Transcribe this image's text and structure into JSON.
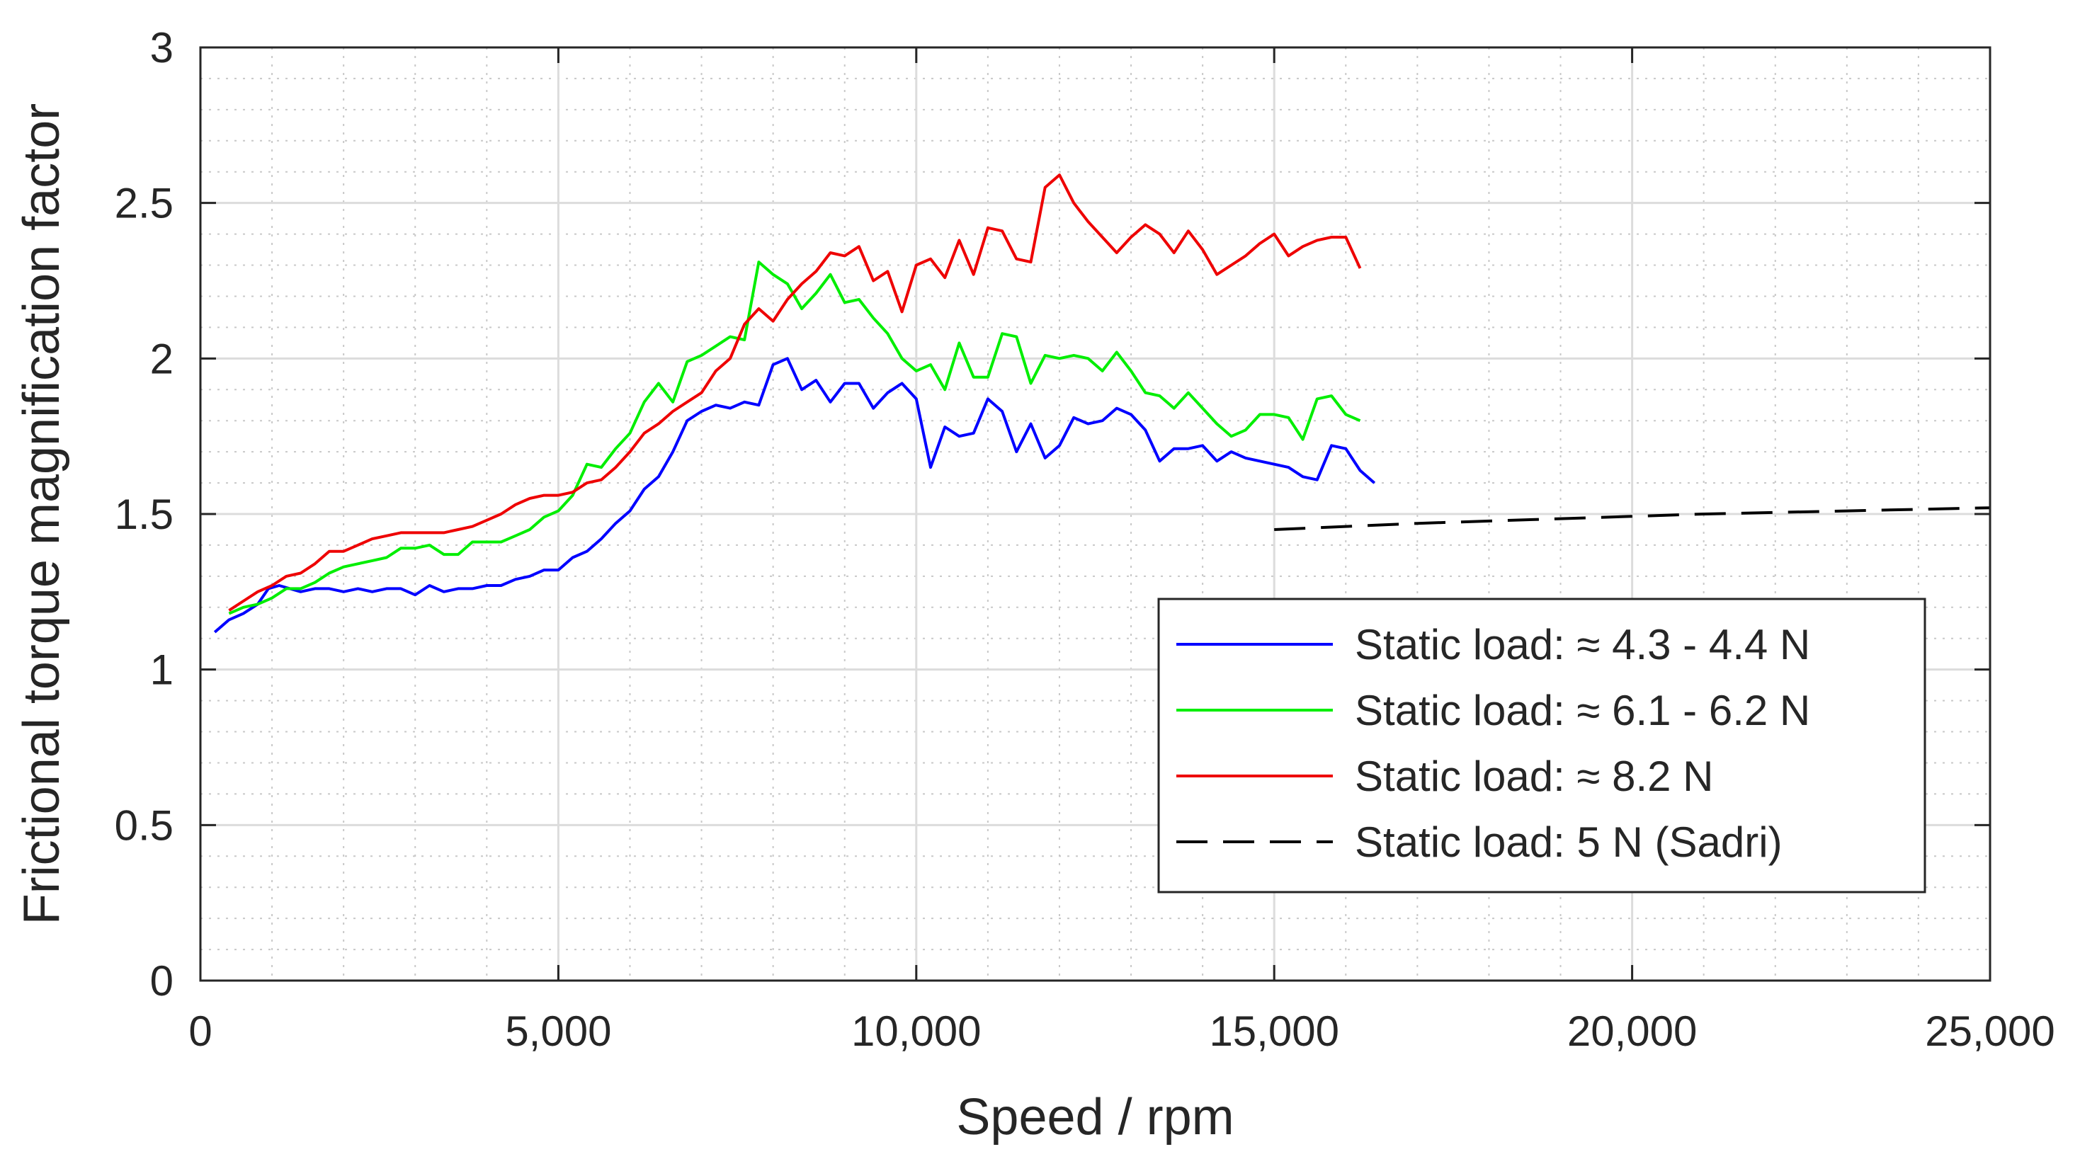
{
  "chart_data": {
    "type": "line",
    "xlabel": "Speed / rpm",
    "ylabel": "Frictional torque magnification factor",
    "xlim": [
      0,
      25000
    ],
    "ylim": [
      0,
      3
    ],
    "x_ticks": [
      0,
      5000,
      10000,
      15000,
      20000,
      25000
    ],
    "x_tick_labels": [
      "0",
      "5,000",
      "10,000",
      "15,000",
      "20,000",
      "25,000"
    ],
    "y_ticks": [
      0,
      0.5,
      1,
      1.5,
      2,
      2.5,
      3
    ],
    "y_tick_labels": [
      "0",
      "0.5",
      "1",
      "1.5",
      "2",
      "2.5",
      "3"
    ],
    "grid": true,
    "minor_grid": true,
    "legend_position": "bottom-right",
    "series": [
      {
        "name": "Static load: ≈ 4.3 - 4.4 N",
        "color": "#0000ff",
        "style": "solid",
        "points": [
          [
            200,
            1.12
          ],
          [
            400,
            1.16
          ],
          [
            600,
            1.18
          ],
          [
            800,
            1.21
          ],
          [
            950,
            1.26
          ],
          [
            1100,
            1.27
          ],
          [
            1250,
            1.26
          ],
          [
            1400,
            1.25
          ],
          [
            1600,
            1.26
          ],
          [
            1800,
            1.26
          ],
          [
            2000,
            1.25
          ],
          [
            2200,
            1.26
          ],
          [
            2400,
            1.25
          ],
          [
            2600,
            1.26
          ],
          [
            2800,
            1.26
          ],
          [
            3000,
            1.24
          ],
          [
            3200,
            1.27
          ],
          [
            3400,
            1.25
          ],
          [
            3600,
            1.26
          ],
          [
            3800,
            1.26
          ],
          [
            4000,
            1.27
          ],
          [
            4200,
            1.27
          ],
          [
            4400,
            1.29
          ],
          [
            4600,
            1.3
          ],
          [
            4800,
            1.32
          ],
          [
            5000,
            1.32
          ],
          [
            5200,
            1.36
          ],
          [
            5400,
            1.38
          ],
          [
            5600,
            1.42
          ],
          [
            5800,
            1.47
          ],
          [
            6000,
            1.51
          ],
          [
            6200,
            1.58
          ],
          [
            6400,
            1.62
          ],
          [
            6600,
            1.7
          ],
          [
            6800,
            1.8
          ],
          [
            7000,
            1.83
          ],
          [
            7200,
            1.85
          ],
          [
            7400,
            1.84
          ],
          [
            7600,
            1.86
          ],
          [
            7800,
            1.85
          ],
          [
            8000,
            1.98
          ],
          [
            8200,
            2.0
          ],
          [
            8400,
            1.9
          ],
          [
            8600,
            1.93
          ],
          [
            8800,
            1.86
          ],
          [
            9000,
            1.92
          ],
          [
            9200,
            1.92
          ],
          [
            9400,
            1.84
          ],
          [
            9600,
            1.89
          ],
          [
            9800,
            1.92
          ],
          [
            10000,
            1.87
          ],
          [
            10200,
            1.65
          ],
          [
            10400,
            1.78
          ],
          [
            10600,
            1.75
          ],
          [
            10800,
            1.76
          ],
          [
            11000,
            1.87
          ],
          [
            11200,
            1.83
          ],
          [
            11400,
            1.7
          ],
          [
            11600,
            1.79
          ],
          [
            11800,
            1.68
          ],
          [
            12000,
            1.72
          ],
          [
            12200,
            1.81
          ],
          [
            12400,
            1.79
          ],
          [
            12600,
            1.8
          ],
          [
            12800,
            1.84
          ],
          [
            13000,
            1.82
          ],
          [
            13200,
            1.77
          ],
          [
            13400,
            1.67
          ],
          [
            13600,
            1.71
          ],
          [
            13800,
            1.71
          ],
          [
            14000,
            1.72
          ],
          [
            14200,
            1.67
          ],
          [
            14400,
            1.7
          ],
          [
            14600,
            1.68
          ],
          [
            14800,
            1.67
          ],
          [
            15000,
            1.66
          ],
          [
            15200,
            1.65
          ],
          [
            15400,
            1.62
          ],
          [
            15600,
            1.61
          ],
          [
            15800,
            1.72
          ],
          [
            16000,
            1.71
          ],
          [
            16200,
            1.64
          ],
          [
            16400,
            1.6
          ]
        ]
      },
      {
        "name": "Static load: ≈ 6.1 - 6.2 N",
        "color": "#00ee00",
        "style": "solid",
        "points": [
          [
            400,
            1.18
          ],
          [
            600,
            1.2
          ],
          [
            800,
            1.21
          ],
          [
            1000,
            1.23
          ],
          [
            1200,
            1.26
          ],
          [
            1400,
            1.26
          ],
          [
            1600,
            1.28
          ],
          [
            1800,
            1.31
          ],
          [
            2000,
            1.33
          ],
          [
            2200,
            1.34
          ],
          [
            2400,
            1.35
          ],
          [
            2600,
            1.36
          ],
          [
            2800,
            1.39
          ],
          [
            3000,
            1.39
          ],
          [
            3200,
            1.4
          ],
          [
            3400,
            1.37
          ],
          [
            3600,
            1.37
          ],
          [
            3800,
            1.41
          ],
          [
            4000,
            1.41
          ],
          [
            4200,
            1.41
          ],
          [
            4400,
            1.43
          ],
          [
            4600,
            1.45
          ],
          [
            4800,
            1.49
          ],
          [
            5000,
            1.51
          ],
          [
            5200,
            1.56
          ],
          [
            5400,
            1.66
          ],
          [
            5600,
            1.65
          ],
          [
            5800,
            1.71
          ],
          [
            6000,
            1.76
          ],
          [
            6200,
            1.86
          ],
          [
            6400,
            1.92
          ],
          [
            6600,
            1.86
          ],
          [
            6800,
            1.99
          ],
          [
            7000,
            2.01
          ],
          [
            7200,
            2.04
          ],
          [
            7400,
            2.07
          ],
          [
            7600,
            2.06
          ],
          [
            7800,
            2.31
          ],
          [
            8000,
            2.27
          ],
          [
            8200,
            2.24
          ],
          [
            8400,
            2.16
          ],
          [
            8600,
            2.21
          ],
          [
            8800,
            2.27
          ],
          [
            9000,
            2.18
          ],
          [
            9200,
            2.19
          ],
          [
            9400,
            2.13
          ],
          [
            9600,
            2.08
          ],
          [
            9800,
            2.0
          ],
          [
            10000,
            1.96
          ],
          [
            10200,
            1.98
          ],
          [
            10400,
            1.9
          ],
          [
            10600,
            2.05
          ],
          [
            10800,
            1.94
          ],
          [
            11000,
            1.94
          ],
          [
            11200,
            2.08
          ],
          [
            11400,
            2.07
          ],
          [
            11600,
            1.92
          ],
          [
            11800,
            2.01
          ],
          [
            12000,
            2.0
          ],
          [
            12200,
            2.01
          ],
          [
            12400,
            2.0
          ],
          [
            12600,
            1.96
          ],
          [
            12800,
            2.02
          ],
          [
            13000,
            1.96
          ],
          [
            13200,
            1.89
          ],
          [
            13400,
            1.88
          ],
          [
            13600,
            1.84
          ],
          [
            13800,
            1.89
          ],
          [
            14000,
            1.84
          ],
          [
            14200,
            1.79
          ],
          [
            14400,
            1.75
          ],
          [
            14600,
            1.77
          ],
          [
            14800,
            1.82
          ],
          [
            15000,
            1.82
          ],
          [
            15200,
            1.81
          ],
          [
            15400,
            1.74
          ],
          [
            15600,
            1.87
          ],
          [
            15800,
            1.88
          ],
          [
            16000,
            1.82
          ],
          [
            16200,
            1.8
          ]
        ]
      },
      {
        "name": "Static load: ≈ 8.2 N",
        "color": "#ee0000",
        "style": "solid",
        "points": [
          [
            400,
            1.19
          ],
          [
            600,
            1.22
          ],
          [
            800,
            1.25
          ],
          [
            1000,
            1.27
          ],
          [
            1200,
            1.3
          ],
          [
            1400,
            1.31
          ],
          [
            1600,
            1.34
          ],
          [
            1800,
            1.38
          ],
          [
            2000,
            1.38
          ],
          [
            2200,
            1.4
          ],
          [
            2400,
            1.42
          ],
          [
            2600,
            1.43
          ],
          [
            2800,
            1.44
          ],
          [
            3000,
            1.44
          ],
          [
            3200,
            1.44
          ],
          [
            3400,
            1.44
          ],
          [
            3600,
            1.45
          ],
          [
            3800,
            1.46
          ],
          [
            4000,
            1.48
          ],
          [
            4200,
            1.5
          ],
          [
            4400,
            1.53
          ],
          [
            4600,
            1.55
          ],
          [
            4800,
            1.56
          ],
          [
            5000,
            1.56
          ],
          [
            5200,
            1.57
          ],
          [
            5400,
            1.6
          ],
          [
            5600,
            1.61
          ],
          [
            5800,
            1.65
          ],
          [
            6000,
            1.7
          ],
          [
            6200,
            1.76
          ],
          [
            6400,
            1.79
          ],
          [
            6600,
            1.83
          ],
          [
            6800,
            1.86
          ],
          [
            7000,
            1.89
          ],
          [
            7200,
            1.96
          ],
          [
            7400,
            2.0
          ],
          [
            7600,
            2.11
          ],
          [
            7800,
            2.16
          ],
          [
            8000,
            2.12
          ],
          [
            8200,
            2.19
          ],
          [
            8400,
            2.24
          ],
          [
            8600,
            2.28
          ],
          [
            8800,
            2.34
          ],
          [
            9000,
            2.33
          ],
          [
            9200,
            2.36
          ],
          [
            9400,
            2.25
          ],
          [
            9600,
            2.28
          ],
          [
            9800,
            2.15
          ],
          [
            10000,
            2.3
          ],
          [
            10200,
            2.32
          ],
          [
            10400,
            2.26
          ],
          [
            10600,
            2.38
          ],
          [
            10800,
            2.27
          ],
          [
            11000,
            2.42
          ],
          [
            11200,
            2.41
          ],
          [
            11400,
            2.32
          ],
          [
            11600,
            2.31
          ],
          [
            11800,
            2.55
          ],
          [
            12000,
            2.59
          ],
          [
            12200,
            2.5
          ],
          [
            12400,
            2.44
          ],
          [
            12600,
            2.39
          ],
          [
            12800,
            2.34
          ],
          [
            13000,
            2.39
          ],
          [
            13200,
            2.43
          ],
          [
            13400,
            2.4
          ],
          [
            13600,
            2.34
          ],
          [
            13800,
            2.41
          ],
          [
            14000,
            2.35
          ],
          [
            14200,
            2.27
          ],
          [
            14400,
            2.3
          ],
          [
            14600,
            2.33
          ],
          [
            14800,
            2.37
          ],
          [
            15000,
            2.4
          ],
          [
            15200,
            2.33
          ],
          [
            15400,
            2.36
          ],
          [
            15600,
            2.38
          ],
          [
            15800,
            2.39
          ],
          [
            16000,
            2.39
          ],
          [
            16200,
            2.29
          ]
        ]
      },
      {
        "name": "Static load: 5 N (Sadri)",
        "color": "#000000",
        "style": "dashed",
        "points": [
          [
            15000,
            1.45
          ],
          [
            17000,
            1.47
          ],
          [
            19000,
            1.485
          ],
          [
            21000,
            1.5
          ],
          [
            23000,
            1.51
          ],
          [
            25000,
            1.52
          ]
        ]
      }
    ]
  }
}
